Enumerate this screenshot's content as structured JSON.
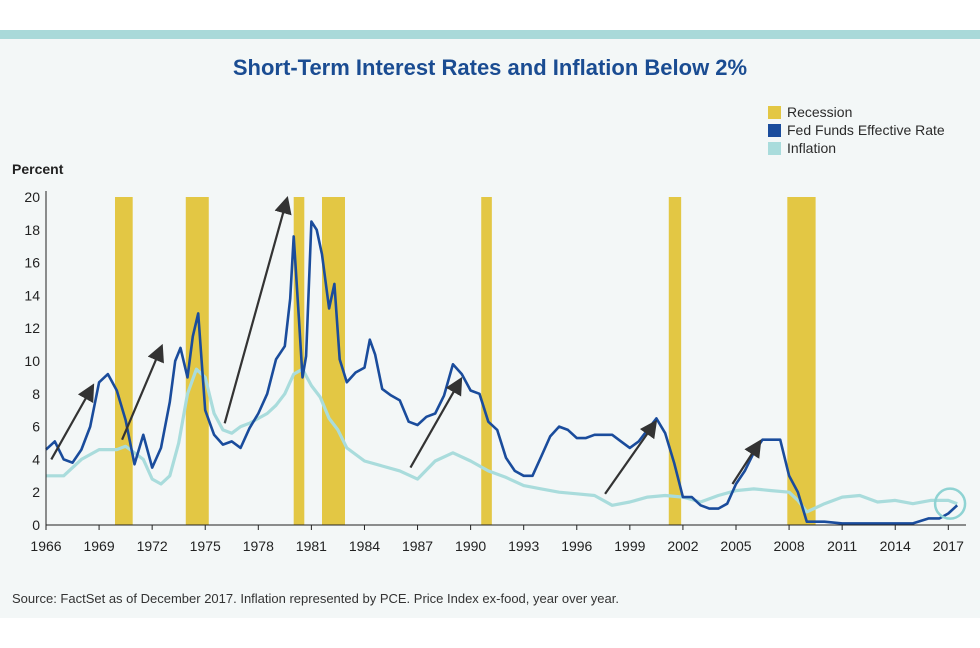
{
  "chart_data": {
    "type": "line",
    "title": "Short-Term Interest Rates and Inflation Below 2%",
    "ylabel": "Percent",
    "xlabel": "",
    "xlim": [
      1966,
      2018
    ],
    "ylim": [
      0,
      20
    ],
    "yticks": [
      0,
      2,
      4,
      6,
      8,
      10,
      12,
      14,
      16,
      18,
      20
    ],
    "xticks": [
      1966,
      1969,
      1972,
      1975,
      1978,
      1981,
      1984,
      1987,
      1990,
      1993,
      1996,
      1999,
      2002,
      2005,
      2008,
      2011,
      2014,
      2017
    ],
    "grid": false,
    "legend_position": "top-right",
    "legend": [
      {
        "label": "Recession",
        "color": "#e3c744",
        "kind": "band"
      },
      {
        "label": "Fed Funds Effective Rate",
        "color": "#1a4c9c",
        "kind": "line"
      },
      {
        "label": "Inflation",
        "color": "#a9dcdc",
        "kind": "line"
      }
    ],
    "recessions": [
      [
        1969.9,
        1970.9
      ],
      [
        1973.9,
        1975.2
      ],
      [
        1980.0,
        1980.6
      ],
      [
        1981.6,
        1982.9
      ],
      [
        1990.6,
        1991.2
      ],
      [
        2001.2,
        2001.9
      ],
      [
        2007.9,
        2009.5
      ]
    ],
    "series": [
      {
        "name": "Fed Funds Effective Rate",
        "color": "#1a4c9c",
        "x": [
          1966.0,
          1966.5,
          1967.0,
          1967.5,
          1968.0,
          1968.5,
          1969.0,
          1969.5,
          1970.0,
          1970.5,
          1971.0,
          1971.5,
          1972.0,
          1972.5,
          1973.0,
          1973.3,
          1973.6,
          1974.0,
          1974.3,
          1974.6,
          1975.0,
          1975.5,
          1976.0,
          1976.5,
          1977.0,
          1977.5,
          1978.0,
          1978.5,
          1979.0,
          1979.5,
          1979.8,
          1980.0,
          1980.3,
          1980.5,
          1980.7,
          1981.0,
          1981.3,
          1981.6,
          1982.0,
          1982.3,
          1982.6,
          1983.0,
          1983.5,
          1984.0,
          1984.3,
          1984.6,
          1985.0,
          1985.5,
          1986.0,
          1986.5,
          1987.0,
          1987.5,
          1988.0,
          1988.5,
          1989.0,
          1989.5,
          1990.0,
          1990.5,
          1991.0,
          1991.5,
          1992.0,
          1992.5,
          1993.0,
          1993.5,
          1994.0,
          1994.5,
          1995.0,
          1995.5,
          1996.0,
          1996.5,
          1997.0,
          1997.5,
          1998.0,
          1998.5,
          1999.0,
          1999.5,
          2000.0,
          2000.5,
          2001.0,
          2001.5,
          2002.0,
          2002.5,
          2003.0,
          2003.5,
          2004.0,
          2004.5,
          2005.0,
          2005.5,
          2006.0,
          2006.5,
          2007.0,
          2007.5,
          2008.0,
          2008.5,
          2009.0,
          2010.0,
          2011.0,
          2012.0,
          2013.0,
          2014.0,
          2015.0,
          2015.9,
          2016.5,
          2017.0,
          2017.5
        ],
        "values": [
          4.6,
          5.1,
          4.0,
          3.8,
          4.6,
          6.0,
          8.7,
          9.2,
          8.2,
          6.4,
          3.7,
          5.5,
          3.5,
          4.7,
          7.5,
          10.0,
          10.8,
          9.0,
          11.5,
          12.9,
          7.0,
          5.5,
          4.9,
          5.1,
          4.7,
          5.9,
          6.8,
          8.0,
          10.1,
          10.9,
          13.8,
          17.6,
          12.5,
          9.0,
          10.3,
          18.5,
          18.0,
          16.5,
          13.2,
          14.7,
          10.1,
          8.7,
          9.3,
          9.6,
          11.3,
          10.4,
          8.3,
          7.9,
          7.6,
          6.3,
          6.1,
          6.6,
          6.8,
          7.9,
          9.8,
          9.2,
          8.2,
          8.0,
          6.3,
          5.8,
          4.1,
          3.3,
          3.0,
          3.0,
          4.2,
          5.4,
          6.0,
          5.8,
          5.3,
          5.3,
          5.5,
          5.5,
          5.5,
          5.1,
          4.7,
          5.1,
          5.8,
          6.5,
          5.6,
          3.8,
          1.7,
          1.7,
          1.2,
          1.0,
          1.0,
          1.3,
          2.5,
          3.3,
          4.4,
          5.2,
          5.2,
          5.2,
          3.0,
          2.0,
          0.2,
          0.2,
          0.1,
          0.1,
          0.1,
          0.1,
          0.1,
          0.4,
          0.4,
          0.7,
          1.2
        ]
      },
      {
        "name": "Inflation",
        "color": "#a9dcdc",
        "x": [
          1966.0,
          1967.0,
          1968.0,
          1969.0,
          1970.0,
          1970.5,
          1971.0,
          1971.5,
          1972.0,
          1972.5,
          1973.0,
          1973.5,
          1974.0,
          1974.5,
          1975.0,
          1975.5,
          1976.0,
          1976.5,
          1977.0,
          1977.5,
          1978.0,
          1978.5,
          1979.0,
          1979.5,
          1980.0,
          1980.5,
          1981.0,
          1981.5,
          1982.0,
          1982.5,
          1983.0,
          1984.0,
          1985.0,
          1986.0,
          1987.0,
          1988.0,
          1989.0,
          1990.0,
          1991.0,
          1992.0,
          1993.0,
          1994.0,
          1995.0,
          1996.0,
          1997.0,
          1998.0,
          1999.0,
          2000.0,
          2001.0,
          2002.0,
          2003.0,
          2004.0,
          2005.0,
          2006.0,
          2007.0,
          2008.0,
          2008.5,
          2009.0,
          2010.0,
          2011.0,
          2012.0,
          2013.0,
          2014.0,
          2015.0,
          2016.0,
          2017.0,
          2017.5
        ],
        "values": [
          3.0,
          3.0,
          4.0,
          4.6,
          4.6,
          4.8,
          4.4,
          4.0,
          2.8,
          2.5,
          3.0,
          5.0,
          8.0,
          9.5,
          9.0,
          6.8,
          5.8,
          5.6,
          6.0,
          6.2,
          6.5,
          6.8,
          7.3,
          8.0,
          9.2,
          9.5,
          8.5,
          7.8,
          6.5,
          5.8,
          4.7,
          3.9,
          3.6,
          3.3,
          2.8,
          3.9,
          4.4,
          3.9,
          3.3,
          2.9,
          2.4,
          2.2,
          2.0,
          1.9,
          1.8,
          1.2,
          1.4,
          1.7,
          1.8,
          1.7,
          1.4,
          1.8,
          2.1,
          2.2,
          2.1,
          2.0,
          1.5,
          0.8,
          1.3,
          1.7,
          1.8,
          1.4,
          1.5,
          1.3,
          1.5,
          1.5,
          1.3
        ]
      }
    ],
    "annotations": {
      "arrows": [
        [
          1966.3,
          4.0,
          1968.6,
          8.4
        ],
        [
          1970.3,
          5.2,
          1972.5,
          10.8
        ],
        [
          1976.1,
          6.2,
          1979.6,
          19.8
        ],
        [
          1986.6,
          3.5,
          1989.4,
          8.8
        ],
        [
          1997.6,
          1.9,
          2000.4,
          6.2
        ],
        [
          2004.8,
          2.5,
          2006.3,
          5.0
        ]
      ],
      "circle": {
        "x": 2017.1,
        "y": 1.3
      }
    }
  },
  "source_note": "Source: FactSet as of December 2017. Inflation represented by PCE. Price Index ex-food, year over year."
}
